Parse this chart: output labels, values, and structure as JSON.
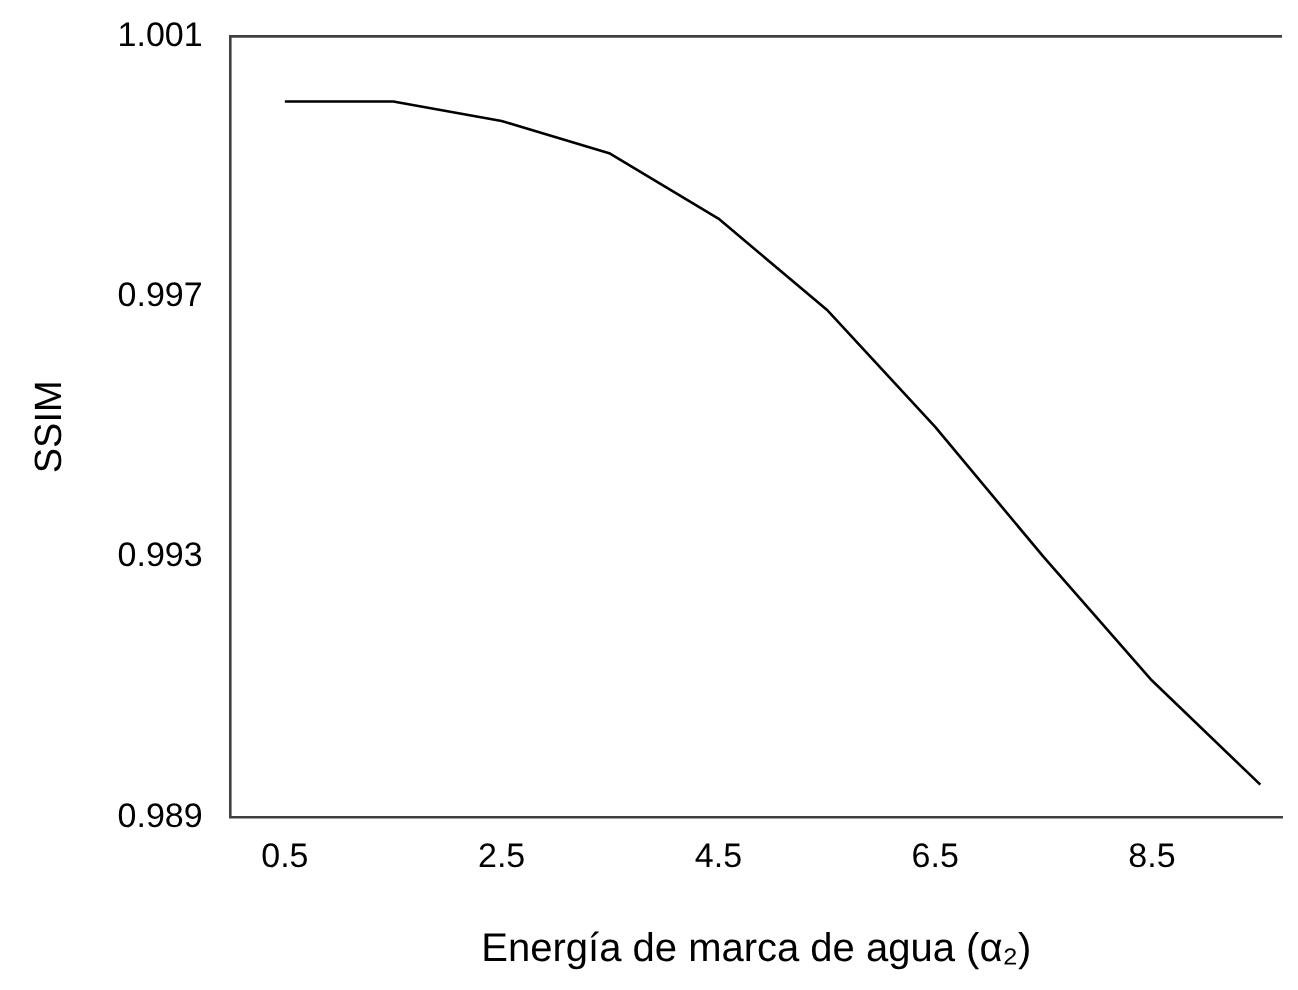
{
  "chart_data": {
    "type": "line",
    "xlabel": "Energía de marca de agua (α₂)",
    "ylabel": "SSIM",
    "x": [
      0.5,
      1.5,
      2.5,
      3.5,
      4.5,
      5.5,
      6.5,
      7.5,
      8.5,
      9.5
    ],
    "series": [
      {
        "color": "#000000",
        "values": [
          1.0,
          1.0,
          0.9997,
          0.9992,
          0.9982,
          0.9968,
          0.995,
          0.993,
          0.9911,
          0.9895
        ]
      }
    ],
    "xlim": [
      0,
      9.7
    ],
    "xticks": [
      0.5,
      2.5,
      4.5,
      6.5,
      8.5
    ],
    "ylim": [
      0.989,
      1.001
    ],
    "yticks": [
      0.989,
      0.993,
      0.997,
      1.001
    ],
    "grid": false,
    "legend": false,
    "marker": "none",
    "line_style": "solid"
  }
}
